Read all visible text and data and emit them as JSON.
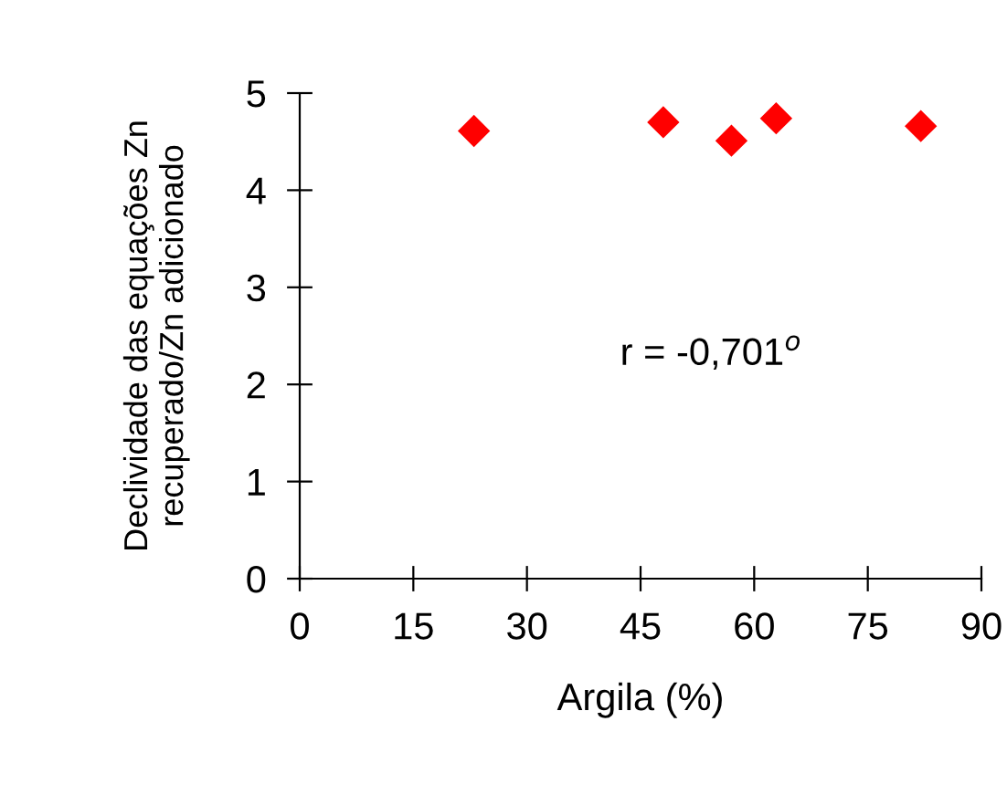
{
  "chart_data": {
    "type": "scatter",
    "xlabel": "Argila (%)",
    "ylabel": "Declividade das equações Zn\nrecuperado/Zn adicionado",
    "x": [
      23.0,
      48.0,
      57.0,
      62.9,
      82.0
    ],
    "values": [
      4.61,
      4.7,
      4.51,
      4.74,
      4.66
    ],
    "color": "#ff0000",
    "marker": "diamond",
    "xlim": [
      0,
      90
    ],
    "xticks": [
      0,
      15,
      30,
      45,
      60,
      75,
      90
    ],
    "ylim": [
      0,
      5
    ],
    "yticks": [
      0,
      1,
      2,
      3,
      4,
      5
    ],
    "grid": false,
    "legend": false,
    "annotations": [
      "r = -0,701$^{o}$"
    ]
  }
}
